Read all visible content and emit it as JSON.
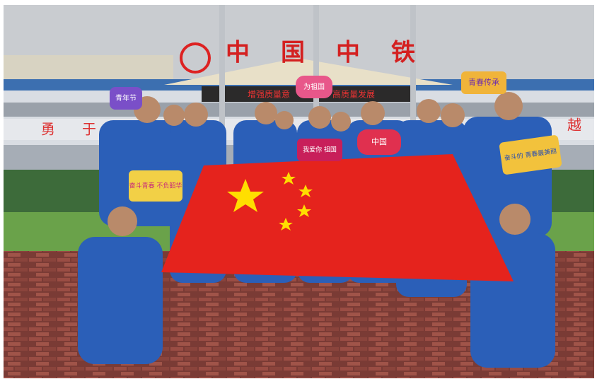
{
  "building_sign": "中国中铁",
  "banner": [
    "增强质量意",
    "高质量发展"
  ],
  "wall_slogan": [
    "勇",
    "于",
    "越"
  ],
  "signs": [
    "青年节",
    "为祖国",
    "我爱你 祖国",
    "中国",
    "青春传承",
    "奋斗青春 不负韶华",
    "奋斗的 青春最美丽"
  ]
}
